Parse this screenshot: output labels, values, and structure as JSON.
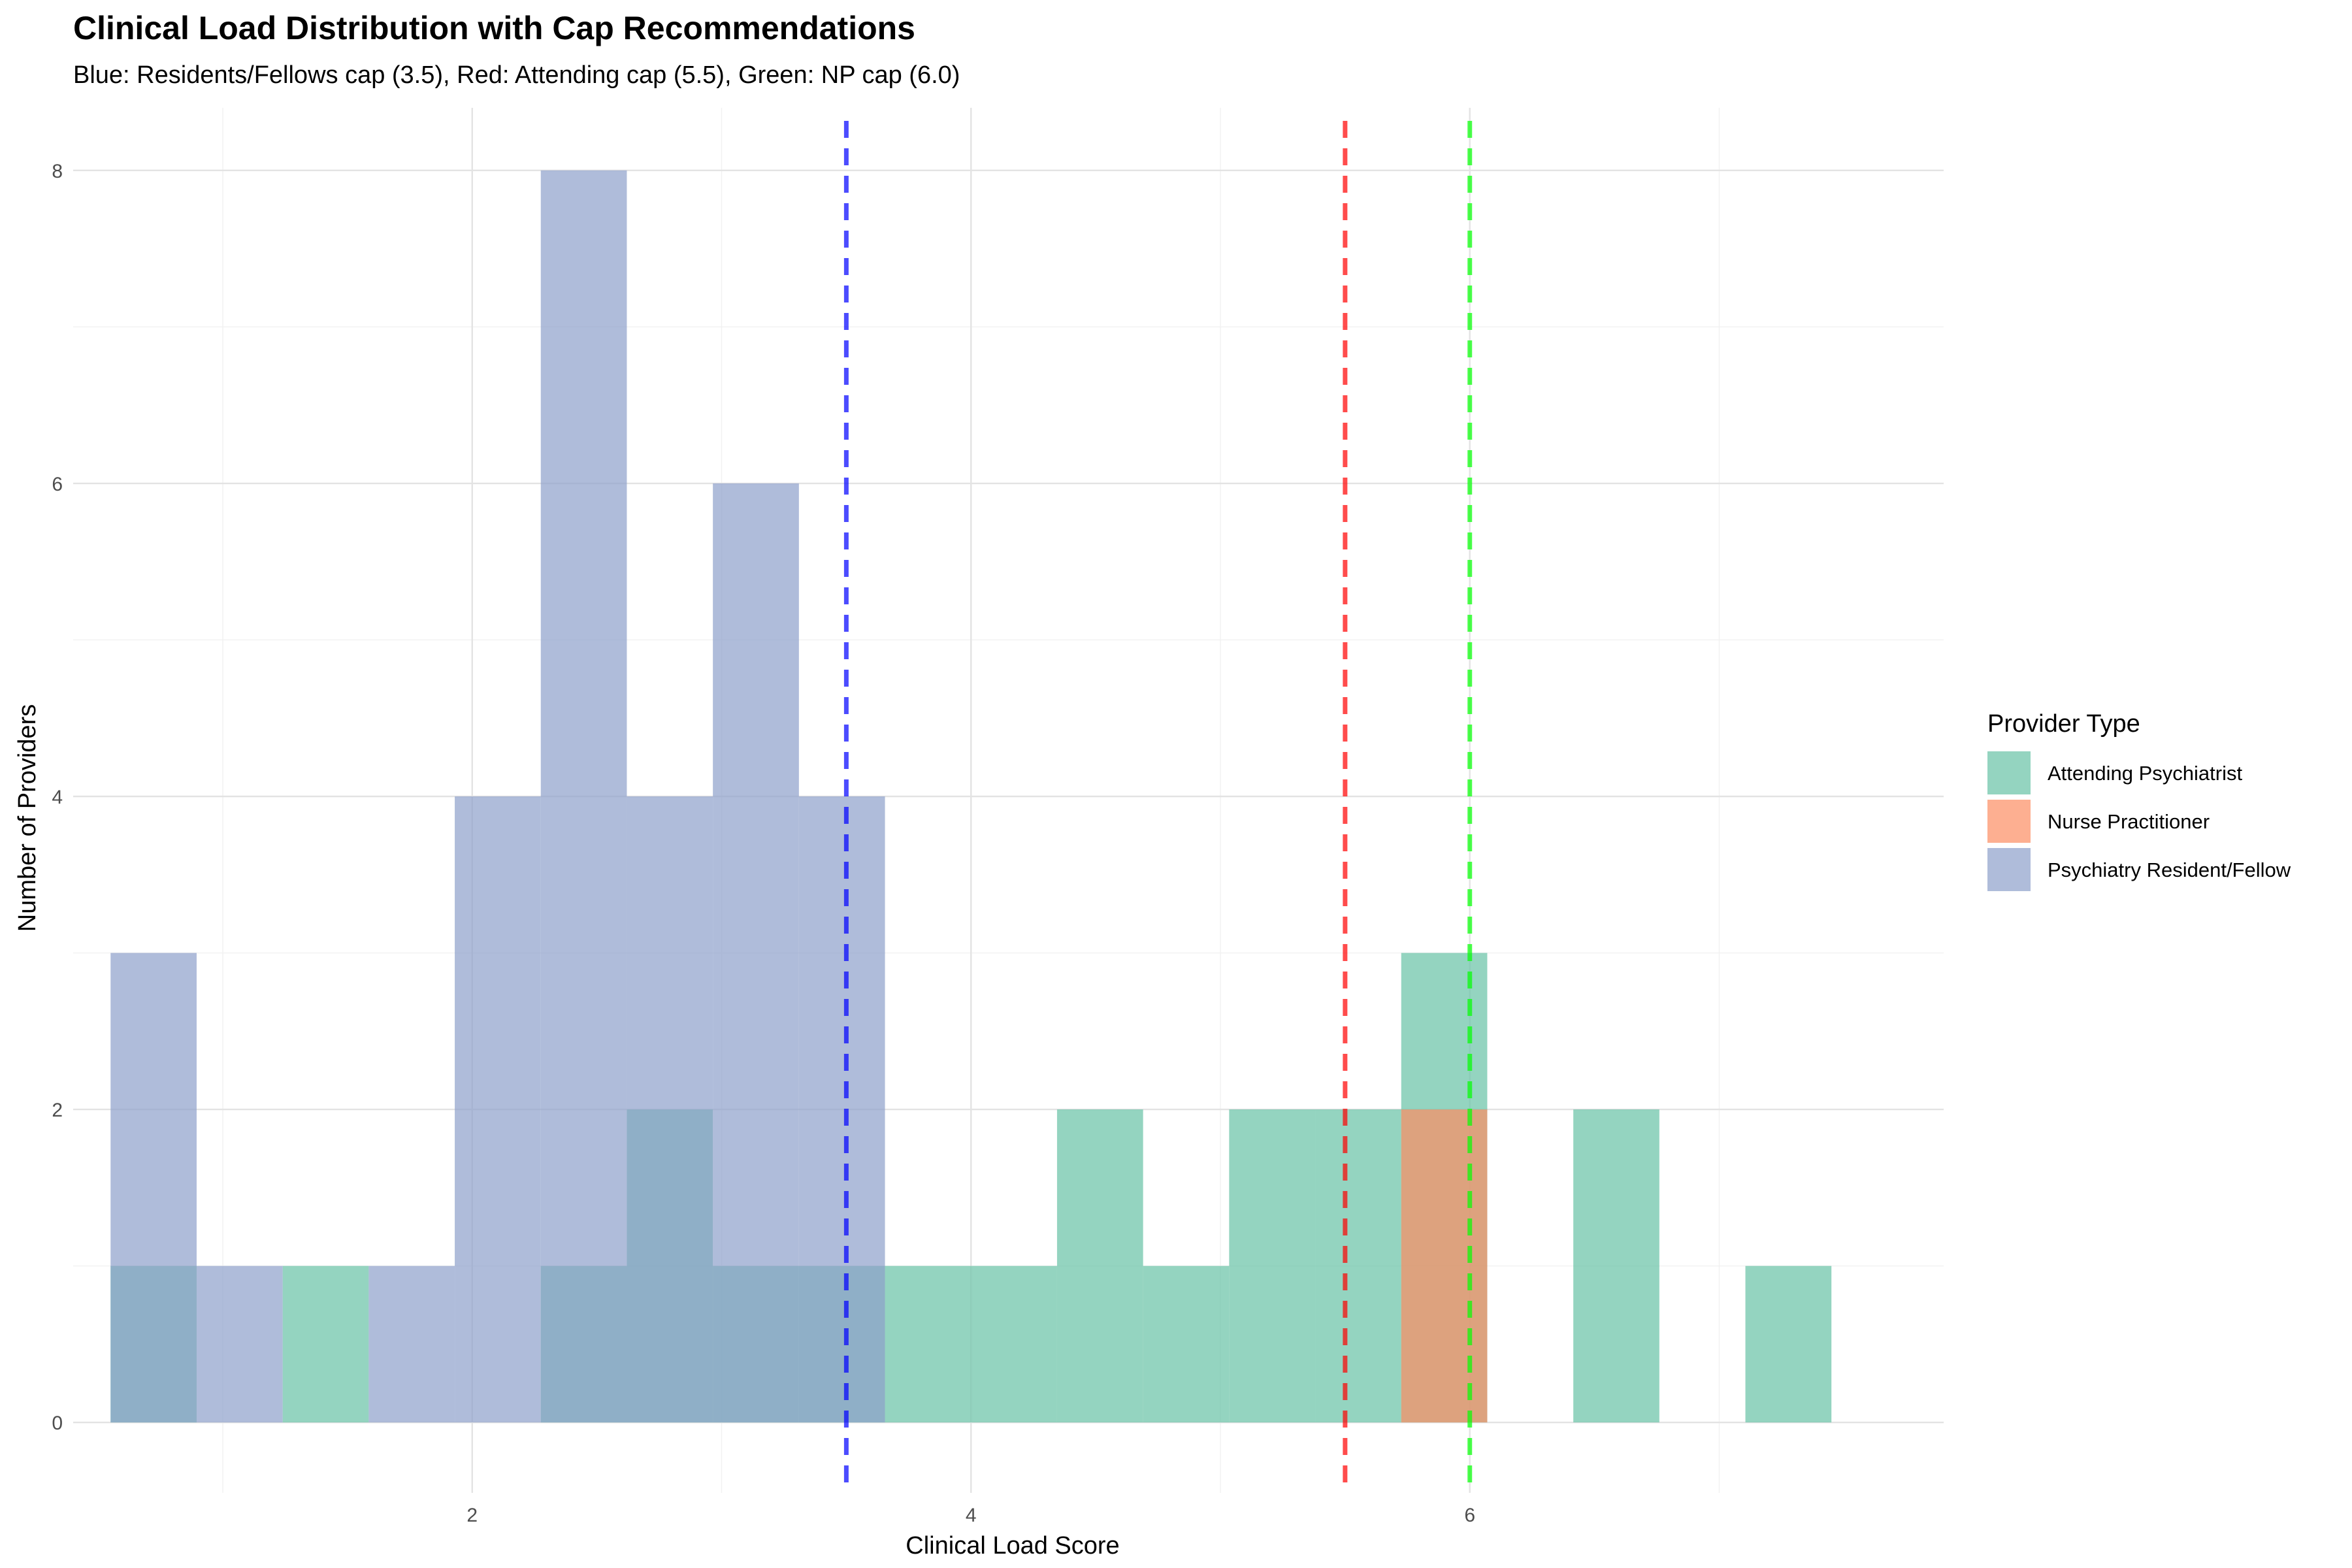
{
  "chart_data": {
    "type": "bar",
    "title": "Clinical Load Distribution with Cap Recommendations",
    "subtitle": "Blue: Residents/Fellows cap (3.5), Red: Attending cap (5.5), Green: NP cap (6.0)",
    "xlabel": "Clinical Load Score",
    "ylabel": "Number of Providers",
    "xlim": [
      0.4,
      7.9
    ],
    "ylim": [
      -0.45,
      8.4
    ],
    "x_ticks": [
      2,
      4,
      6
    ],
    "y_ticks": [
      0,
      2,
      4,
      6,
      8
    ],
    "grid": true,
    "legend": {
      "title": "Provider Type",
      "placement": "right"
    },
    "series": [
      {
        "name": "Attending Psychiatrist",
        "color": "#66C2A5",
        "bins": [
          {
            "x0": 0.55,
            "x1": 0.895,
            "count": 1
          },
          {
            "x0": 1.24,
            "x1": 1.585,
            "count": 1
          },
          {
            "x0": 2.275,
            "x1": 2.62,
            "count": 1
          },
          {
            "x0": 2.62,
            "x1": 2.965,
            "count": 2
          },
          {
            "x0": 2.965,
            "x1": 3.31,
            "count": 1
          },
          {
            "x0": 3.31,
            "x1": 3.655,
            "count": 1
          },
          {
            "x0": 3.655,
            "x1": 4.0,
            "count": 1
          },
          {
            "x0": 4.0,
            "x1": 4.345,
            "count": 1
          },
          {
            "x0": 4.345,
            "x1": 4.69,
            "count": 2
          },
          {
            "x0": 4.69,
            "x1": 5.035,
            "count": 1
          },
          {
            "x0": 5.035,
            "x1": 5.38,
            "count": 2
          },
          {
            "x0": 5.38,
            "x1": 5.725,
            "count": 2
          },
          {
            "x0": 5.725,
            "x1": 6.07,
            "count": 3
          },
          {
            "x0": 6.415,
            "x1": 6.76,
            "count": 2
          },
          {
            "x0": 7.105,
            "x1": 7.45,
            "count": 1
          }
        ]
      },
      {
        "name": "Nurse Practitioner",
        "color": "#FC8D62",
        "bins": [
          {
            "x0": 5.725,
            "x1": 6.07,
            "count": 2
          }
        ]
      },
      {
        "name": "Psychiatry Resident/Fellow",
        "color": "#8DA0CB",
        "bins": [
          {
            "x0": 0.55,
            "x1": 0.895,
            "count": 3
          },
          {
            "x0": 0.895,
            "x1": 1.24,
            "count": 1
          },
          {
            "x0": 1.585,
            "x1": 1.93,
            "count": 1
          },
          {
            "x0": 1.93,
            "x1": 2.275,
            "count": 4
          },
          {
            "x0": 2.275,
            "x1": 2.62,
            "count": 8
          },
          {
            "x0": 2.62,
            "x1": 2.965,
            "count": 4
          },
          {
            "x0": 2.965,
            "x1": 3.31,
            "count": 6
          },
          {
            "x0": 3.31,
            "x1": 3.655,
            "count": 4
          }
        ]
      }
    ],
    "reference_lines": [
      {
        "x": 3.5,
        "color": "#0000FF"
      },
      {
        "x": 5.5,
        "color": "#FF0000"
      },
      {
        "x": 6.0,
        "color": "#00FF00"
      }
    ]
  }
}
